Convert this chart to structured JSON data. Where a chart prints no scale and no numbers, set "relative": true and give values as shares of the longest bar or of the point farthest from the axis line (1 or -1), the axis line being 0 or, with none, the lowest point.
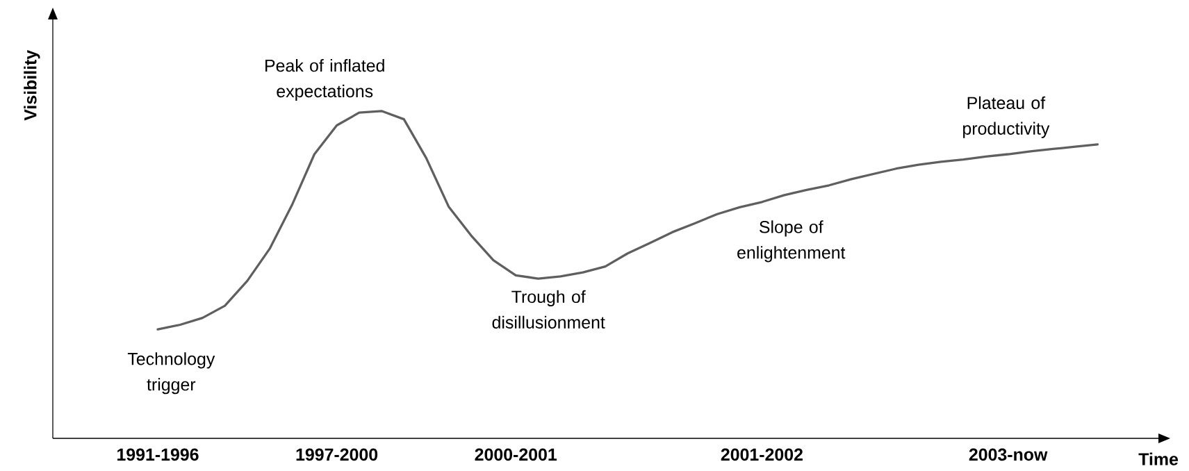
{
  "chart_data": {
    "type": "line",
    "relative": true,
    "color": "#5f5f5f",
    "xlabel": "Time",
    "ylabel": "Visibility",
    "categories": [
      "1991-1996",
      null,
      null,
      null,
      null,
      null,
      null,
      null,
      "1997-2000",
      null,
      null,
      null,
      null,
      null,
      null,
      null,
      "2000-2001",
      null,
      null,
      null,
      null,
      null,
      null,
      null,
      null,
      null,
      null,
      "2001-2002",
      null,
      null,
      null,
      null,
      null,
      null,
      null,
      null,
      null,
      null,
      "2003-now",
      null,
      null,
      null,
      null
    ],
    "values": [
      0.333,
      0.347,
      0.368,
      0.405,
      0.481,
      0.579,
      0.713,
      0.868,
      0.956,
      0.995,
      1,
      0.975,
      0.856,
      0.708,
      0.62,
      0.544,
      0.498,
      0.488,
      0.495,
      0.507,
      0.525,
      0.565,
      0.597,
      0.63,
      0.657,
      0.685,
      0.706,
      0.722,
      0.743,
      0.759,
      0.773,
      0.792,
      0.808,
      0.824,
      0.836,
      0.845,
      0.852,
      0.861,
      0.868,
      0.877,
      0.884,
      0.891,
      0.898
    ],
    "annotations": [
      "Technology trigger",
      "Peak of inflated expectations",
      "Trough of disillusionment",
      "Slope of enlightenment",
      "Plateau of productivity"
    ]
  }
}
